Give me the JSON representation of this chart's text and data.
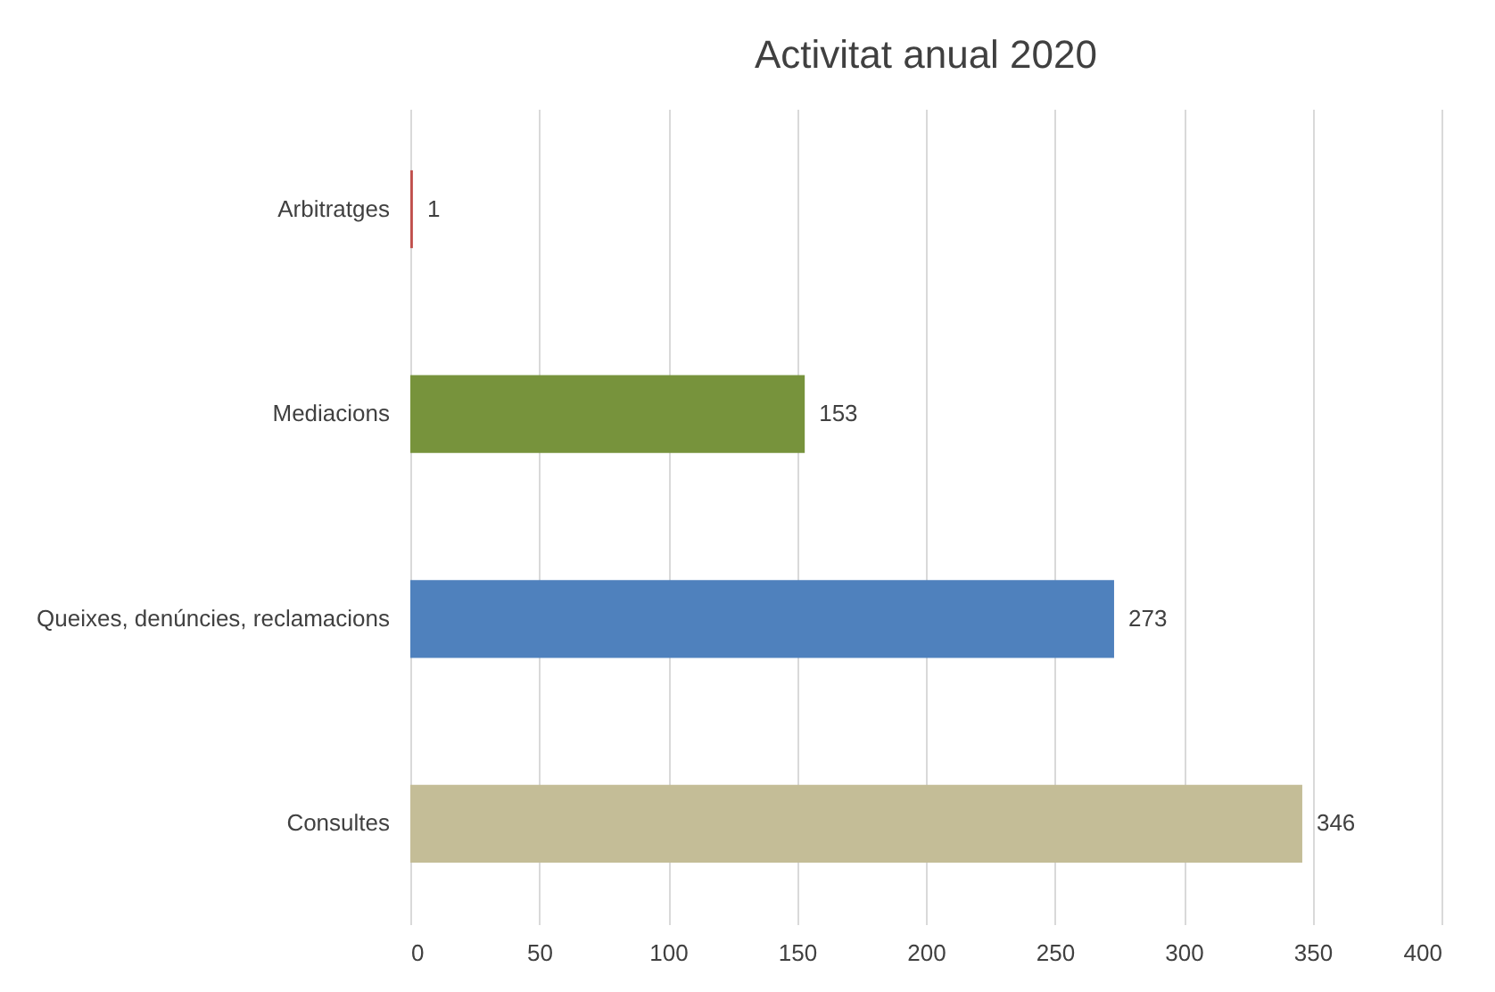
{
  "chart_data": {
    "type": "bar",
    "orientation": "horizontal",
    "title": "Activitat anual 2020",
    "categories": [
      "Arbitratges",
      "Mediacions",
      "Queixes, denúncies, reclamacions",
      "Consultes"
    ],
    "values": [
      1,
      153,
      273,
      346
    ],
    "colors": [
      "#c0504d",
      "#77933c",
      "#4f81bd",
      "#c4bd97"
    ],
    "xlim": [
      0,
      400
    ],
    "xticks": [
      0,
      50,
      100,
      150,
      200,
      250,
      300,
      350,
      400
    ],
    "grid": "x",
    "data_labels": true
  }
}
